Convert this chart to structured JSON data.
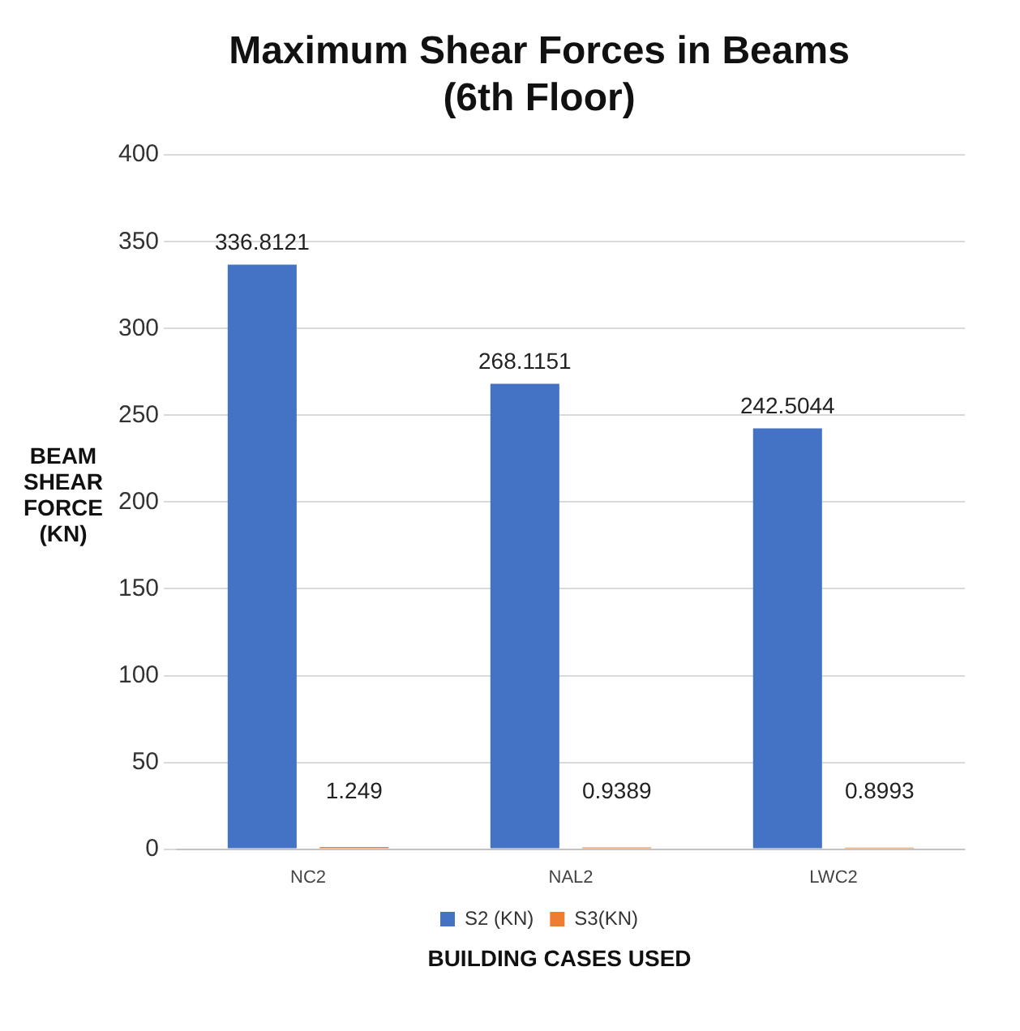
{
  "chart_data": {
    "type": "bar",
    "title": [
      "Maximum Shear Forces in Beams",
      "(6th Floor)"
    ],
    "xlabel": "BUILDING CASES USED",
    "ylabel": "BEAM SHEAR FORCE (KN)",
    "categories": [
      "NC2",
      "NAL2",
      "LWC2"
    ],
    "series": [
      {
        "name": "S2 (KN)",
        "color": "#4472c4",
        "values": [
          336.8121,
          268.1151,
          242.5044
        ]
      },
      {
        "name": "S3(KN)",
        "color": "#ed7d31",
        "values": [
          1.249,
          0.9389,
          0.8993
        ]
      }
    ],
    "ylim": [
      0,
      400
    ],
    "yticks": [
      0,
      50,
      100,
      150,
      200,
      250,
      300,
      350,
      400
    ],
    "grid": "y",
    "legend": "bottom",
    "data_labels": true
  }
}
